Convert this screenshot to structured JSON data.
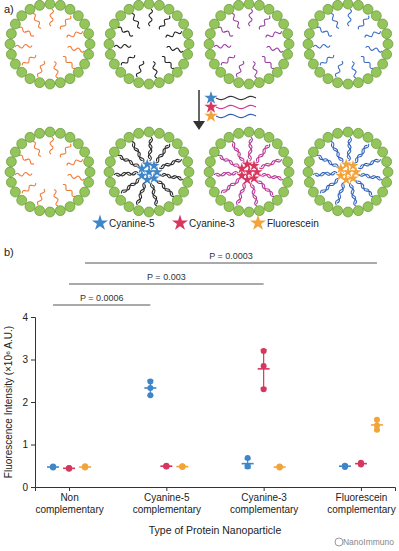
{
  "diagram": {
    "label": "a)"
  },
  "watermark": "NanoImmuno",
  "chart_data": {
    "type": "scatter",
    "label": "b)",
    "x_label": "Type of Protein Nanoparticle",
    "y_label": "Fluorescence Intensity (×10⁶ A.U.)",
    "categories": [
      "Non complementary",
      "Cyanine-5 complementary",
      "Cyanine-3 complementary",
      "Fluorescein complementary"
    ],
    "ylim": [
      0,
      4
    ],
    "yticks": [
      0,
      1,
      2,
      3,
      4
    ],
    "series": [
      {
        "name": "Cyanine-5",
        "color": "#3f86c8",
        "values": [
          0.47,
          2.33,
          0.55,
          0.49
        ],
        "errors": [
          0.02,
          0.18,
          0.11,
          0.03
        ],
        "points": [
          [
            0.46,
            0.48,
            0.47
          ],
          [
            2.16,
            2.33,
            2.48
          ],
          [
            0.68,
            0.5,
            0.48
          ],
          [
            0.5,
            0.47,
            0.49
          ]
        ]
      },
      {
        "name": "Cyanine-3",
        "color": "#d8365f",
        "values": [
          0.44,
          0.49,
          2.78,
          0.55
        ],
        "errors": [
          0.02,
          0.02,
          0.45,
          0.03
        ],
        "points": [
          [
            0.45,
            0.44,
            0.43
          ],
          [
            0.5,
            0.48,
            0.49
          ],
          [
            3.2,
            2.85,
            2.3
          ],
          [
            0.55,
            0.53,
            0.57
          ]
        ]
      },
      {
        "name": "Fluorescein",
        "color": "#f2a33a",
        "values": [
          0.47,
          0.48,
          0.47,
          1.46
        ],
        "errors": [
          0.02,
          0.02,
          0.02,
          0.12
        ],
        "points": [
          [
            0.47,
            0.49,
            0.46
          ],
          [
            0.47,
            0.49,
            0.48
          ],
          [
            0.46,
            0.47,
            0.48
          ],
          [
            1.58,
            1.45,
            1.35
          ]
        ]
      }
    ],
    "annotations": [
      {
        "text": "P = 0.0006",
        "series": "Cyanine-5",
        "between": [
          "Non complementary",
          "Cyanine-5 complementary"
        ]
      },
      {
        "text": "P = 0.003",
        "series": "Cyanine-3",
        "between": [
          "Non complementary",
          "Cyanine-3 complementary"
        ]
      },
      {
        "text": "P = 0.0003",
        "series": "Fluorescein",
        "between": [
          "Non complementary",
          "Fluorescein complementary"
        ]
      }
    ]
  }
}
